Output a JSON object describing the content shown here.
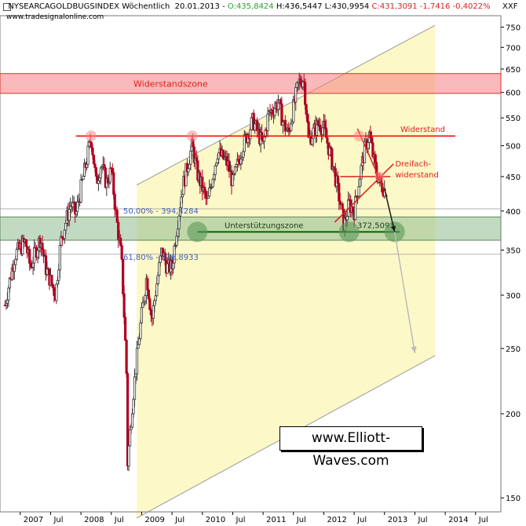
{
  "header": {
    "symbol": "NYSEARCAGOLDBUGSINDEX",
    "interval": "Wöchentlich",
    "date": "20.01.2013",
    "open": "O:435,8424",
    "high": "H:436,5447",
    "low": "L:430,9954",
    "close_change": "C:431,3091 -1,7416 -0,4022%",
    "source": "www.tradesignalonline.com",
    "unit": "XXF"
  },
  "watermark": "www.Elliott-Waves.com",
  "colors": {
    "resistance_zone": "#f08080",
    "support_zone": "#8fbc8f",
    "channel_fill": "#fdf8c8",
    "resistance_line": "#ff0000",
    "support_line": "#006400",
    "price_up": "#333333",
    "price_down": "#b00020",
    "projection": "#bbbbbb"
  },
  "chart_data": {
    "type": "candlestick",
    "y_scale": "log",
    "ylim": [
      143,
      780
    ],
    "y_ticks": [
      150,
      200,
      250,
      300,
      350,
      400,
      450,
      500,
      550,
      600,
      650,
      700,
      750
    ],
    "x_labels": [
      "2007",
      "Jul",
      "2008",
      "Jul",
      "2009",
      "Jul",
      "2010",
      "Jul",
      "2011",
      "Jul",
      "2012",
      "Jul",
      "2013",
      "Jul",
      "2014",
      "Jul"
    ],
    "x_label_dates": [
      "2007-01",
      "2007-07",
      "2008-01",
      "2008-07",
      "2009-01",
      "2009-07",
      "2010-01",
      "2010-07",
      "2011-01",
      "2011-07",
      "2012-01",
      "2012-07",
      "2013-01",
      "2013-07",
      "2014-01",
      "2014-07"
    ],
    "price_path": [
      [
        "2006-10",
        290
      ],
      [
        "2006-12",
        345
      ],
      [
        "2007-02",
        360
      ],
      [
        "2007-03",
        330
      ],
      [
        "2007-05",
        365
      ],
      [
        "2007-06",
        330
      ],
      [
        "2007-08",
        300
      ],
      [
        "2007-09",
        360
      ],
      [
        "2007-11",
        410
      ],
      [
        "2007-12",
        395
      ],
      [
        "2008-02",
        470
      ],
      [
        "2008-03",
        515
      ],
      [
        "2008-04",
        440
      ],
      [
        "2008-05",
        470
      ],
      [
        "2008-06",
        440
      ],
      [
        "2008-07",
        460
      ],
      [
        "2008-08",
        390
      ],
      [
        "2008-09",
        340
      ],
      [
        "2008-10",
        230
      ],
      [
        "2008-10",
        160
      ],
      [
        "2008-11",
        200
      ],
      [
        "2008-12",
        240
      ],
      [
        "2009-02",
        320
      ],
      [
        "2009-03",
        275
      ],
      [
        "2009-05",
        350
      ],
      [
        "2009-06",
        330
      ],
      [
        "2009-07",
        330
      ],
      [
        "2009-09",
        430
      ],
      [
        "2009-11",
        500
      ],
      [
        "2009-12",
        455
      ],
      [
        "2010-02",
        410
      ],
      [
        "2010-04",
        490
      ],
      [
        "2010-06",
        470
      ],
      [
        "2010-07",
        440
      ],
      [
        "2010-09",
        500
      ],
      [
        "2010-11",
        545
      ],
      [
        "2011-01",
        500
      ],
      [
        "2011-02",
        555
      ],
      [
        "2011-04",
        580
      ],
      [
        "2011-05",
        540
      ],
      [
        "2011-06",
        520
      ],
      [
        "2011-08",
        620
      ],
      [
        "2011-09",
        630
      ],
      [
        "2011-10",
        510
      ],
      [
        "2011-12",
        540
      ],
      [
        "2012-01",
        530
      ],
      [
        "2012-03",
        460
      ],
      [
        "2012-05",
        380
      ],
      [
        "2012-06",
        410
      ],
      [
        "2012-07",
        400
      ],
      [
        "2012-09",
        490
      ],
      [
        "2012-10",
        520
      ],
      [
        "2012-11",
        470
      ],
      [
        "2012-12",
        440
      ],
      [
        "2013-01",
        431.3
      ]
    ],
    "annotations": {
      "resistance_zone": {
        "label": "Widerstandszone",
        "range": [
          598,
          640
        ]
      },
      "support_zone": {
        "label": "",
        "range": [
          362,
          392
        ]
      },
      "resistance_line": {
        "label": "Widerstand",
        "value": 517,
        "from": "2007-12",
        "to": "2014-03"
      },
      "support_line": {
        "label": "Unterstützungszone",
        "value": 372.5,
        "from": "2009-12",
        "to": "2013-04",
        "value_label": "372,5093"
      },
      "fib_levels": [
        {
          "label": "50,00% - 394,4284",
          "value": 394.43
        },
        {
          "label": "61,80% - 336,8933",
          "value": 336.89
        }
      ],
      "triple_resistance": {
        "label_line1": "Dreifach-",
        "label_line2": "widerstand",
        "value": 450
      },
      "triangle_apex": {
        "date": "2012-12",
        "value": 450
      },
      "reference_lines": [
        403,
        345
      ]
    },
    "channel": {
      "upper": [
        [
          "2008-12",
          437
        ],
        [
          "2013-11",
          755
        ]
      ],
      "lower": [
        [
          "2008-12",
          140
        ],
        [
          "2013-11",
          244
        ]
      ]
    },
    "projection": [
      [
        "2013-01",
        431.3
      ],
      [
        "2013-03",
        372.5
      ],
      [
        "2013-07",
        246
      ]
    ],
    "markers": [
      {
        "date": "2008-03",
        "value": 517,
        "color": "red"
      },
      {
        "date": "2009-11",
        "value": 517,
        "color": "red"
      },
      {
        "date": "2012-08",
        "value": 517,
        "color": "red"
      },
      {
        "date": "2009-12",
        "value": 372.5,
        "color": "green"
      },
      {
        "date": "2012-06",
        "value": 372.5,
        "color": "green"
      },
      {
        "date": "2013-03",
        "value": 372.5,
        "color": "green"
      }
    ]
  }
}
